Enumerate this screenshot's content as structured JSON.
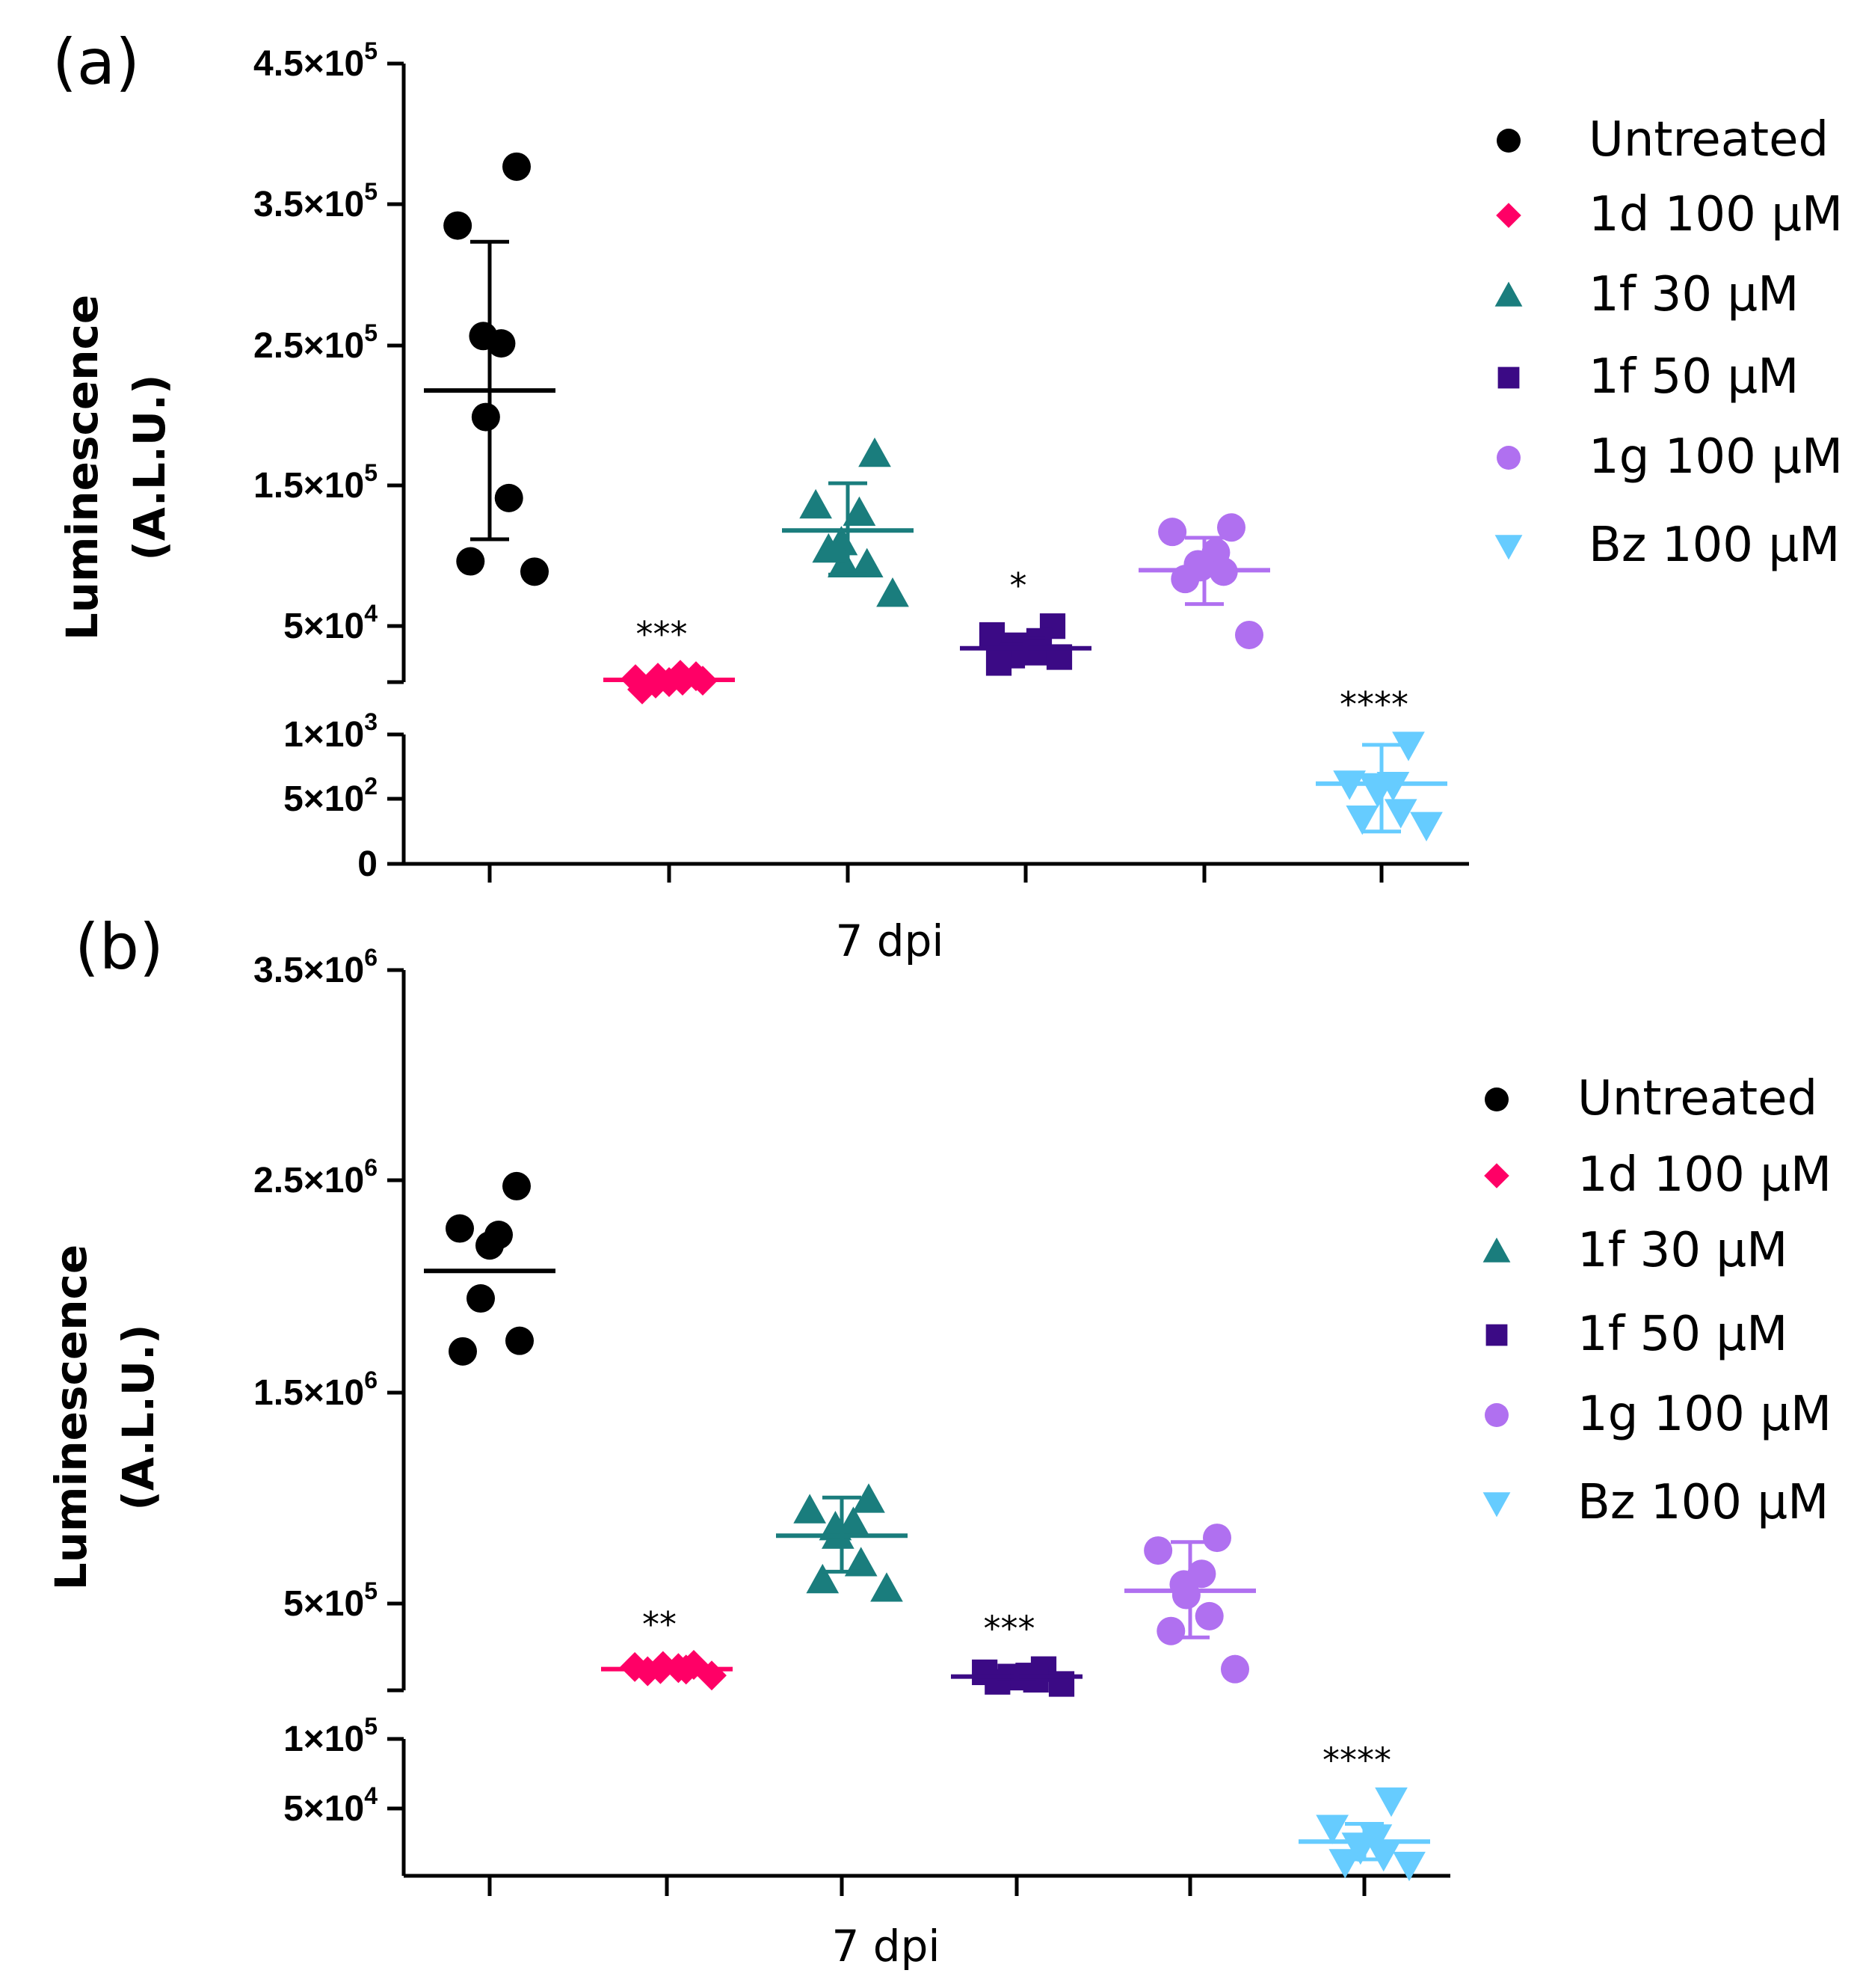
{
  "chart_data": [
    {
      "panel_label": "(a)",
      "type": "scatter",
      "ylabel_line1": "Luminescence",
      "ylabel_line2": "(A.L.U.)",
      "xlabel": "7 dpi",
      "y_axis_break": true,
      "upper_ylim": [
        30000,
        450000
      ],
      "lower_ylim": [
        0,
        1000
      ],
      "upper_ticks": [
        {
          "value": 450000,
          "base": "4.5×10",
          "exp": "5"
        },
        {
          "value": 350000,
          "base": "3.5×10",
          "exp": "5"
        },
        {
          "value": 250000,
          "base": "2.5×10",
          "exp": "5"
        },
        {
          "value": 150000,
          "base": "1.5×10",
          "exp": "5"
        },
        {
          "value": 50000,
          "base": "5×10",
          "exp": "4"
        }
      ],
      "lower_ticks": [
        {
          "value": 1000,
          "base": "1×10",
          "exp": "3"
        },
        {
          "value": 500,
          "base": "5×10",
          "exp": "2"
        },
        {
          "value": 0,
          "base": "0",
          "exp": ""
        }
      ],
      "legend_placement": "top-right",
      "series": [
        {
          "name": "Untreated",
          "color": "#000000",
          "marker": "circle",
          "segment": "upper",
          "values": [
            380000,
            340000,
            260000,
            265000,
            210000,
            155000,
            112000,
            105000
          ],
          "mean": 228000,
          "sd_low": 127000,
          "sd_high": 329000,
          "significance": ""
        },
        {
          "name": "1d 100 µM",
          "color": "#FF0066",
          "marker": "diamond",
          "segment": "upper",
          "values": [
            34000,
            32000,
            31000,
            33000,
            30000,
            35000,
            29000,
            31000,
            25000
          ],
          "mean": 31500,
          "sd_low": 29000,
          "sd_high": 34000,
          "significance": "***"
        },
        {
          "name": "1f 30 µM",
          "color": "#1A7D7D",
          "marker": "triangle",
          "segment": "upper",
          "values": [
            185000,
            150000,
            145000,
            125000,
            110000,
            110000,
            120000,
            90000
          ],
          "mean": 133000,
          "sd_low": 103000,
          "sd_high": 165000,
          "significance": ""
        },
        {
          "name": "1f 50 µM",
          "color": "#3B0A85",
          "marker": "square",
          "segment": "upper",
          "values": [
            68000,
            62000,
            58000,
            55000,
            52000,
            50000,
            48000,
            47000,
            43000
          ],
          "mean": 53000,
          "sd_low": 46000,
          "sd_high": 60000,
          "significance": "*"
        },
        {
          "name": "1g 100 µM",
          "color": "#B070F0",
          "marker": "circle",
          "segment": "upper",
          "values": [
            135000,
            132000,
            118000,
            110000,
            108000,
            105000,
            100000,
            62000
          ],
          "mean": 106000,
          "sd_low": 83000,
          "sd_high": 128000,
          "significance": ""
        },
        {
          "name": "Bz 100 µM",
          "color": "#66CCFF",
          "marker": "triangle-down",
          "segment": "lower",
          "values": [
            920,
            620,
            610,
            600,
            560,
            400,
            350,
            300
          ],
          "mean": 620,
          "sd_low": 250,
          "sd_high": 920,
          "significance": "****"
        }
      ]
    },
    {
      "panel_label": "(b)",
      "type": "scatter",
      "ylabel_line1": "Luminescence",
      "ylabel_line2": "(A.L.U.)",
      "xlabel": "7 dpi",
      "y_axis_break": true,
      "upper_ylim": [
        100000,
        3500000
      ],
      "lower_ylim": [
        0,
        100000
      ],
      "upper_ticks": [
        {
          "value": 3500000,
          "base": "3.5×10",
          "exp": "6"
        },
        {
          "value": 2500000,
          "base": "2.5×10",
          "exp": "6"
        },
        {
          "value": 1500000,
          "base": "1.5×10",
          "exp": "6"
        },
        {
          "value": 500000,
          "base": "5×10",
          "exp": "5"
        }
      ],
      "lower_ticks": [
        {
          "value": 100000,
          "base": "1×10",
          "exp": "5"
        },
        {
          "value": 50000,
          "base": "5×10",
          "exp": "4"
        }
      ],
      "legend_placement": "top-right",
      "series": [
        {
          "name": "Untreated",
          "color": "#000000",
          "marker": "circle",
          "segment": "upper",
          "values": [
            2480000,
            2280000,
            2250000,
            2200000,
            1950000,
            1750000,
            1700000
          ],
          "mean": 2080000,
          "sd_low": null,
          "sd_high": null,
          "significance": ""
        },
        {
          "name": "1d 100 µM",
          "color": "#FF0066",
          "marker": "diamond",
          "segment": "upper",
          "values": [
            220000,
            210000,
            205000,
            200000,
            215000,
            198000,
            190000,
            170000
          ],
          "mean": 200000,
          "sd_low": 190000,
          "sd_high": 212000,
          "significance": "**"
        },
        {
          "name": "1f 30 µM",
          "color": "#1A7D7D",
          "marker": "triangle",
          "segment": "upper",
          "values": [
            1000000,
            950000,
            890000,
            870000,
            830000,
            700000,
            620000,
            580000
          ],
          "mean": 830000,
          "sd_low": 660000,
          "sd_high": 1010000,
          "significance": ""
        },
        {
          "name": "1f 50 µM",
          "color": "#3B0A85",
          "marker": "square",
          "segment": "upper",
          "values": [
            200000,
            185000,
            170000,
            165000,
            160000,
            150000,
            140000,
            130000
          ],
          "mean": 165000,
          "sd_low": 140000,
          "sd_high": 190000,
          "significance": "***"
        },
        {
          "name": "1g 100 µM",
          "color": "#B070F0",
          "marker": "circle",
          "segment": "upper",
          "values": [
            820000,
            760000,
            650000,
            600000,
            550000,
            450000,
            380000,
            200000
          ],
          "mean": 570000,
          "sd_low": 350000,
          "sd_high": 800000,
          "significance": ""
        },
        {
          "name": "Bz 100  µM",
          "color": "#66CCFF",
          "marker": "triangle-down",
          "segment": "lower",
          "values": [
            55000,
            35000,
            28000,
            22000,
            20000,
            15000,
            10000,
            8000
          ],
          "mean": 25000,
          "sd_low": 12000,
          "sd_high": 38000,
          "significance": "****"
        }
      ]
    }
  ]
}
